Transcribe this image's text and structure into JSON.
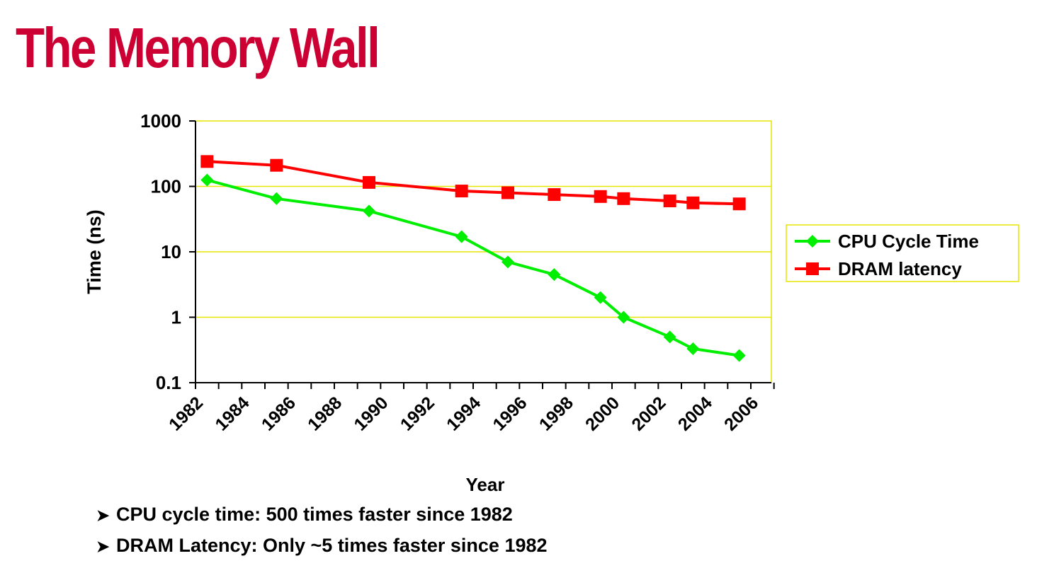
{
  "title": "The Memory Wall",
  "bullets": [
    "CPU cycle time: 500 times faster since 1982",
    "DRAM Latency: Only ~5 times faster since 1982"
  ],
  "chart_data": {
    "type": "line",
    "yscale": "log",
    "ylim": [
      0.1,
      1000
    ],
    "xlim": [
      1982,
      2006
    ],
    "xlabel": "Year",
    "ylabel": "Time (ns)",
    "yticks": [
      "0.1",
      "1",
      "10",
      "100",
      "1000"
    ],
    "xticks": [
      "1982",
      "1984",
      "1986",
      "1988",
      "1990",
      "1992",
      "1994",
      "1996",
      "1998",
      "2000",
      "2002",
      "2004",
      "2006"
    ],
    "grid": "horizontal",
    "legend": "right",
    "series": [
      {
        "name": "CPU Cycle Time",
        "color": "#00ee00",
        "marker": "diamond",
        "x": [
          1982.5,
          1985.5,
          1989.5,
          1993.5,
          1995.5,
          1997.5,
          1999.5,
          2000.5,
          2002.5,
          2003.5,
          2005.5
        ],
        "values": [
          125,
          65,
          42,
          17,
          7,
          4.5,
          2,
          1,
          0.5,
          0.33,
          0.26
        ]
      },
      {
        "name": "DRAM latency",
        "color": "#ff0000",
        "marker": "square",
        "x": [
          1982.5,
          1985.5,
          1989.5,
          1993.5,
          1995.5,
          1997.5,
          1999.5,
          2000.5,
          2002.5,
          2003.5,
          2005.5
        ],
        "values": [
          240,
          210,
          115,
          85,
          80,
          75,
          70,
          65,
          60,
          56,
          54
        ]
      }
    ]
  },
  "colors": {
    "title": "#cc0033",
    "plot_border": "#e6e600",
    "gridline": "#e6e600"
  }
}
